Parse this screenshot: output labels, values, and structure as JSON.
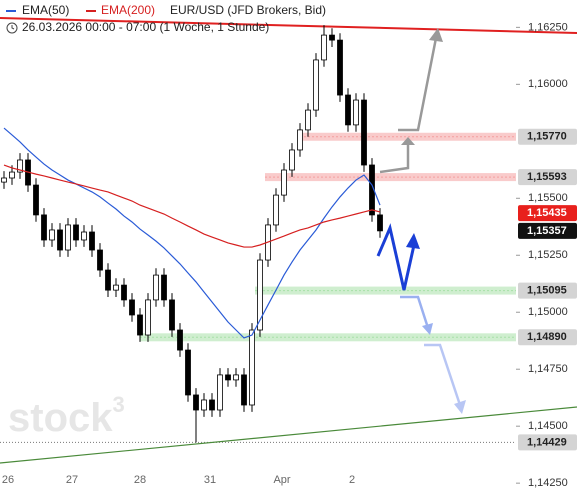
{
  "chart_data": {
    "type": "candlestick",
    "title": "EUR/USD (JFD Brokers, Bid)",
    "subtitle": "26.03.2026 00:00 - 07:00  (1 Woche, 1 Stunde)",
    "watermark": {
      "text": "stock",
      "sup": "3"
    },
    "x_labels": [
      "26",
      "27",
      "28",
      "31",
      "Apr",
      "2"
    ],
    "ylim": [
      1.1422,
      1.1637
    ],
    "yticks": [
      {
        "value": 1.1625,
        "label": "1,16250"
      },
      {
        "value": 1.16,
        "label": "1,16000"
      },
      {
        "value": 1.155,
        "label": "1,15500"
      },
      {
        "value": 1.1525,
        "label": "1,15250"
      },
      {
        "value": 1.15,
        "label": "1,15000"
      },
      {
        "value": 1.1475,
        "label": "1,14750"
      },
      {
        "value": 1.145,
        "label": "1,14500"
      },
      {
        "value": 1.1425,
        "label": "1,14250"
      }
    ],
    "levels": [
      {
        "value": 1.1577,
        "label": "1,15770",
        "color": "#d4d4d4",
        "zone": "#f4a0a0"
      },
      {
        "value": 1.15593,
        "label": "1,15593",
        "color": "#d4d4d4",
        "zone": "#f4a0a0"
      },
      {
        "value": 1.15435,
        "label": "1,15435",
        "color": "#e8201c"
      },
      {
        "value": 1.15357,
        "label": "1,15357",
        "color": "#111111"
      },
      {
        "value": 1.15095,
        "label": "1,15095",
        "color": "#d4d4d4",
        "zone": "#a8e0a8"
      },
      {
        "value": 1.1489,
        "label": "1,14890",
        "color": "#d4d4d4",
        "zone": "#a8e0a8"
      },
      {
        "value": 1.14429,
        "label": "1,14429",
        "color": "#d4d4d4"
      }
    ],
    "candles": {
      "open": [
        1.15571,
        1.15589,
        1.15615,
        1.15668,
        1.15558,
        1.15427,
        1.15317,
        1.15361,
        1.15273,
        1.15383,
        1.15317,
        1.15352,
        1.15273,
        1.15185,
        1.15097,
        1.15119,
        1.15054,
        1.14988,
        1.149,
        1.15054,
        1.15163,
        1.15054,
        1.14922,
        1.14834,
        1.14637,
        1.14571,
        1.14615,
        1.14571,
        1.14725,
        1.14703,
        1.14725,
        1.14593,
        1.14922,
        1.15229,
        1.15383,
        1.15514,
        1.15624,
        1.15712,
        1.158,
        1.15887,
        1.16107,
        1.16216,
        1.16194,
        1.15953,
        1.15822,
        1.15931,
        1.15646,
        1.15427
      ],
      "high": [
        1.15619,
        1.15645,
        1.15698,
        1.15698,
        1.15588,
        1.15457,
        1.15391,
        1.15391,
        1.15413,
        1.15413,
        1.15382,
        1.15382,
        1.15303,
        1.15215,
        1.15149,
        1.15149,
        1.15084,
        1.15018,
        1.15084,
        1.15193,
        1.15193,
        1.15084,
        1.14952,
        1.14864,
        1.14667,
        1.14645,
        1.14645,
        1.14755,
        1.14755,
        1.14755,
        1.14755,
        1.14952,
        1.15259,
        1.15413,
        1.15544,
        1.15654,
        1.15742,
        1.1583,
        1.15917,
        1.16137,
        1.1626,
        1.16246,
        1.16224,
        1.15983,
        1.15961,
        1.15961,
        1.15676,
        1.15457
      ],
      "low": [
        1.15541,
        1.15559,
        1.15585,
        1.15528,
        1.15397,
        1.15287,
        1.15287,
        1.15243,
        1.15243,
        1.15287,
        1.15287,
        1.15243,
        1.15155,
        1.15067,
        1.15067,
        1.15024,
        1.14958,
        1.1487,
        1.1487,
        1.15024,
        1.15024,
        1.14892,
        1.14804,
        1.14607,
        1.14429,
        1.14541,
        1.14541,
        1.14541,
        1.14673,
        1.14673,
        1.14563,
        1.14563,
        1.14892,
        1.15199,
        1.15353,
        1.15484,
        1.15594,
        1.15682,
        1.1577,
        1.15857,
        1.16077,
        1.16164,
        1.15923,
        1.15792,
        1.15792,
        1.15616,
        1.15397,
        1.15327
      ],
      "close": [
        1.15589,
        1.15615,
        1.15668,
        1.15558,
        1.15427,
        1.15317,
        1.15361,
        1.15273,
        1.15383,
        1.15317,
        1.15352,
        1.15273,
        1.15185,
        1.15097,
        1.15119,
        1.15054,
        1.14988,
        1.149,
        1.15054,
        1.15163,
        1.15054,
        1.14922,
        1.14834,
        1.14637,
        1.14571,
        1.14615,
        1.14571,
        1.14725,
        1.14703,
        1.14725,
        1.14593,
        1.14922,
        1.15229,
        1.15383,
        1.15514,
        1.15624,
        1.15712,
        1.158,
        1.15887,
        1.16107,
        1.16216,
        1.16194,
        1.15953,
        1.15822,
        1.15931,
        1.15646,
        1.15427,
        1.15357
      ]
    },
    "series": [
      {
        "name": "EMA(50)",
        "color": "#2a5bd7",
        "values": [
          1.15808,
          1.15778,
          1.15747,
          1.15712,
          1.15681,
          1.1565,
          1.15624,
          1.15602,
          1.1558,
          1.15563,
          1.15545,
          1.15528,
          1.15506,
          1.15479,
          1.15453,
          1.15422,
          1.15396,
          1.15365,
          1.15339,
          1.15312,
          1.15282,
          1.15247,
          1.15212,
          1.15172,
          1.15133,
          1.15089,
          1.15045,
          1.15001,
          1.14957,
          1.14922,
          1.14887,
          1.149,
          1.14966,
          1.15032,
          1.15097,
          1.15163,
          1.1522,
          1.15273,
          1.15317,
          1.15361,
          1.15413,
          1.15462,
          1.15506,
          1.15545,
          1.1558,
          1.15602,
          1.15558,
          1.1547
        ]
      },
      {
        "name": "EMA(200)",
        "color": "#d62020",
        "values": [
          1.15646,
          1.15633,
          1.15624,
          1.15615,
          1.15606,
          1.15598,
          1.15589,
          1.1558,
          1.15571,
          1.15563,
          1.15554,
          1.15545,
          1.15536,
          1.15528,
          1.15514,
          1.15501,
          1.15488,
          1.1547,
          1.15457,
          1.15444,
          1.15431,
          1.15413,
          1.15396,
          1.15378,
          1.15361,
          1.15343,
          1.1533,
          1.15317,
          1.15304,
          1.15295,
          1.15286,
          1.15286,
          1.15295,
          1.15308,
          1.15321,
          1.15334,
          1.15348,
          1.15361,
          1.1537,
          1.15383,
          1.15396,
          1.15405,
          1.15413,
          1.15422,
          1.15431,
          1.1544,
          1.15449,
          1.1544
        ]
      }
    ]
  }
}
